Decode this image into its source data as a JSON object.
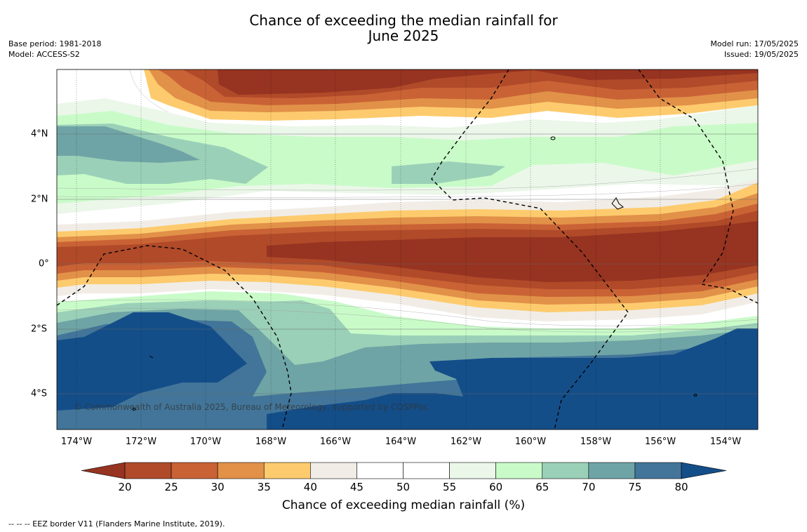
{
  "title_line1": "Chance of exceeding the median rainfall for",
  "title_line2": "June 2025",
  "meta_left": {
    "base_period": "Base period: 1981-2018",
    "model": "Model: ACCESS-S2"
  },
  "meta_right": {
    "model_run": "Model run: 17/05/2025",
    "issued": "Issued: 19/05/2025"
  },
  "lon_ticks": [
    "174°W",
    "172°W",
    "170°W",
    "168°W",
    "166°W",
    "164°W",
    "162°W",
    "160°W",
    "158°W",
    "156°W",
    "154°W"
  ],
  "lat_ticks": [
    "4°N",
    "2°N",
    "0°",
    "2°S",
    "4°S"
  ],
  "credit": "© Commonwealth of Australia 2025, Bureau of Meteorology, supported by COSPPac",
  "colorbar": {
    "title": "Chance of exceeding median rainfall (%)",
    "ticks": [
      "20",
      "25",
      "30",
      "35",
      "40",
      "45",
      "50",
      "55",
      "60",
      "65",
      "70",
      "75",
      "80"
    ],
    "colors": [
      "#963321",
      "#b04a29",
      "#c96335",
      "#e29149",
      "#fdcb6e",
      "#f1ede6",
      "#ffffff",
      "#ffffff",
      "#ebf7e9",
      "#c9fbc9",
      "#9bd0b8",
      "#6fa4a6",
      "#427599",
      "#144e89"
    ]
  },
  "footnote": "--  --  -- EEZ border V11 (Flanders Marine Institute, 2019)."
}
